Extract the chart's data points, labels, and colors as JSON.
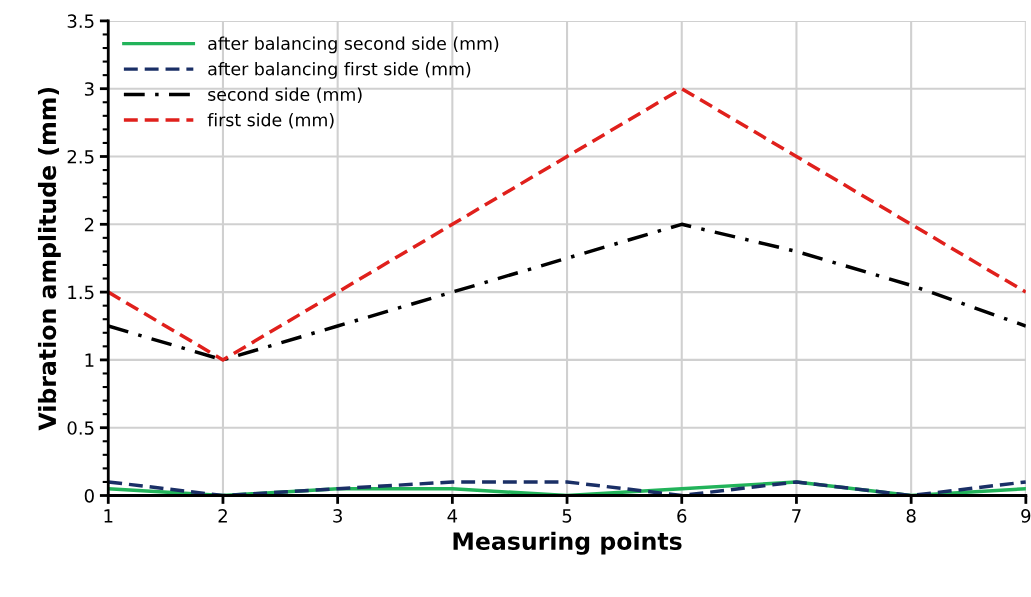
{
  "chart_data": {
    "type": "line",
    "xlabel": "Measuring points",
    "ylabel": "Vibration amplitude (mm)",
    "x": [
      1,
      2,
      3,
      4,
      5,
      6,
      7,
      8,
      9
    ],
    "xlim": [
      1,
      9
    ],
    "xticks": [
      1,
      2,
      3,
      4,
      5,
      6,
      7,
      8,
      9
    ],
    "ylim": [
      0,
      3.5
    ],
    "yticks": [
      0,
      0.5,
      1,
      1.5,
      2,
      2.5,
      3,
      3.5
    ],
    "grid": true,
    "legend": "top left",
    "series": [
      {
        "name": "after balancing second side (mm)",
        "color": "#22b35a",
        "line_style": "solid",
        "values": [
          0.05,
          0,
          0.05,
          0.05,
          0,
          0.05,
          0.1,
          0,
          0.05
        ]
      },
      {
        "name": "after balancing first side (mm)",
        "color": "#1a2f66",
        "line_style": "dashed",
        "values": [
          0.1,
          0,
          0.05,
          0.1,
          0.1,
          0,
          0.1,
          0,
          0.1
        ]
      },
      {
        "name": "second side (mm)",
        "color": "#000000",
        "line_style": "dashdot",
        "values": [
          1.25,
          1,
          1.25,
          1.5,
          1.75,
          2,
          1.8,
          1.55,
          1.25
        ]
      },
      {
        "name": "first side (mm)",
        "color": "#e0201c",
        "line_style": "dashed",
        "values": [
          1.5,
          1,
          1.5,
          2,
          2.5,
          3,
          2.5,
          2,
          1.5
        ]
      }
    ]
  }
}
